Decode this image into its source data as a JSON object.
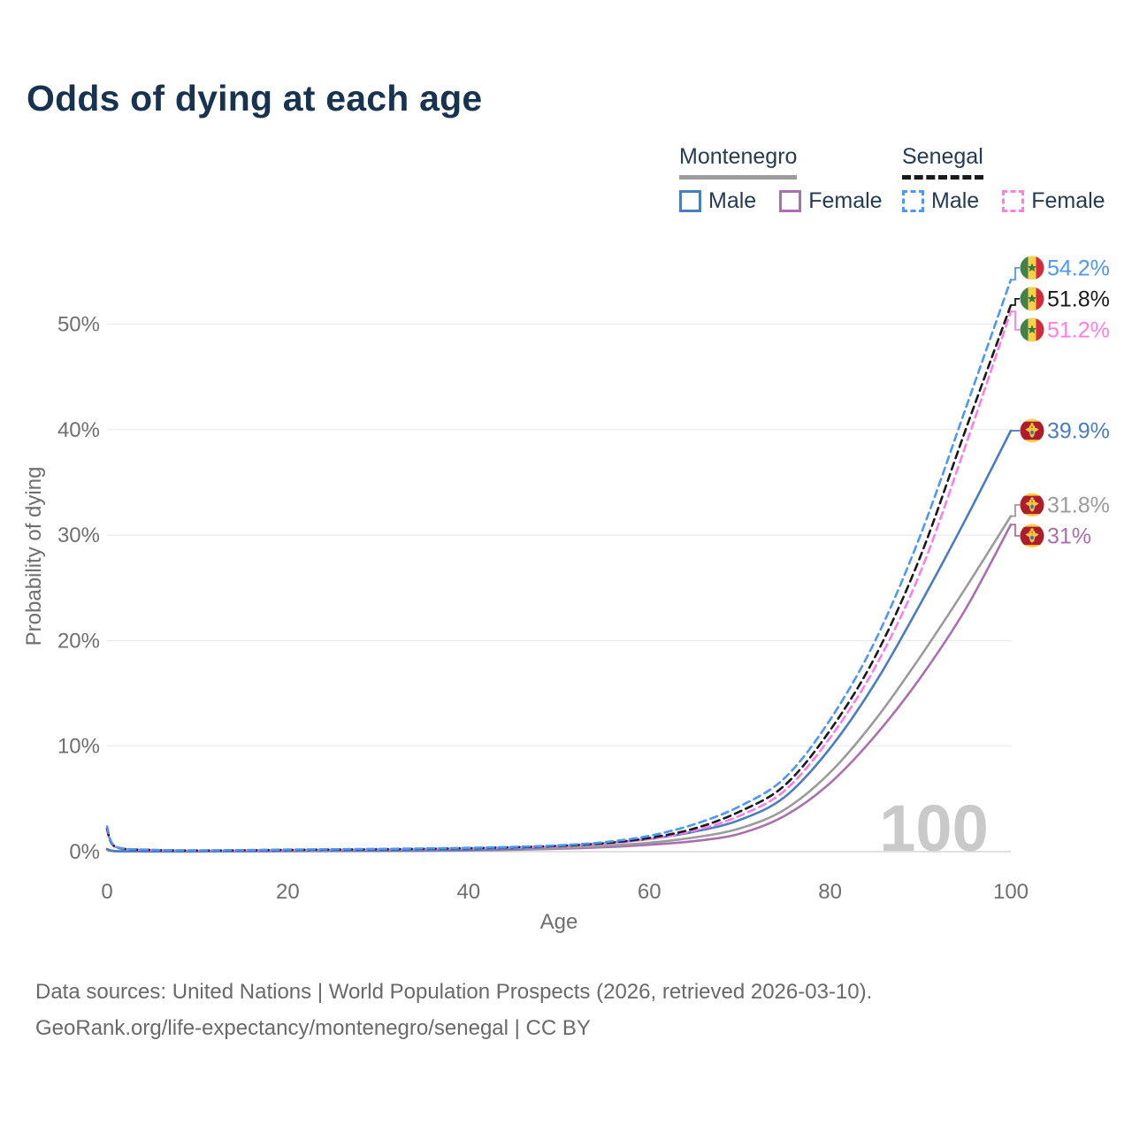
{
  "title": "Odds of dying at each age",
  "legend": {
    "groups": [
      {
        "id": "montenegro",
        "label": "Montenegro",
        "line_style": "solid",
        "underline_color": "#9c9c9c"
      },
      {
        "id": "senegal",
        "label": "Senegal",
        "line_style": "dashed",
        "underline_color": "#1a1a1a"
      }
    ],
    "items": [
      {
        "group": "montenegro",
        "label": "Male",
        "color": "#4a7cc0",
        "dashed": false
      },
      {
        "group": "montenegro",
        "label": "Female",
        "color": "#aa6fae",
        "dashed": false
      },
      {
        "group": "senegal",
        "label": "Male",
        "color": "#4e97f3",
        "dashed": true
      },
      {
        "group": "senegal",
        "label": "Female",
        "color": "#fb7ee6",
        "dashed": true
      }
    ]
  },
  "chart_data": {
    "type": "line",
    "title": "Odds of dying at each age",
    "xlabel": "Age",
    "ylabel": "Probability of dying",
    "x_ticks": [
      0,
      20,
      40,
      60,
      80,
      100
    ],
    "y_ticks": [
      "0%",
      "10%",
      "20%",
      "30%",
      "40%",
      "50%"
    ],
    "xlim": [
      0,
      100
    ],
    "ylim": [
      0,
      57
    ],
    "grid": "horizontal",
    "legend_position": "top-right",
    "watermark": "100",
    "ages": [
      0,
      1,
      5,
      10,
      15,
      20,
      25,
      30,
      35,
      40,
      45,
      50,
      55,
      60,
      65,
      70,
      75,
      80,
      85,
      90,
      95,
      100
    ],
    "unit": "percent",
    "series": [
      {
        "id": "mne_female",
        "name": "Montenegro Female",
        "country": "Montenegro",
        "sex": "Female",
        "color": "#aa6fae",
        "dashed": false,
        "flag": "montenegro",
        "end_label": "31%",
        "end_value": 31.0,
        "values": [
          0.2,
          0.04,
          0.02,
          0.02,
          0.03,
          0.05,
          0.06,
          0.07,
          0.09,
          0.12,
          0.18,
          0.28,
          0.42,
          0.65,
          1.0,
          1.7,
          3.4,
          6.5,
          11.0,
          16.5,
          23.0,
          31.0
        ]
      },
      {
        "id": "mne_both",
        "name": "Montenegro Both sexes",
        "country": "Montenegro",
        "sex": "Both",
        "color": "#9b9b9b",
        "dashed": false,
        "flag": "montenegro",
        "end_label": "31.8%",
        "end_value": 31.8,
        "values": [
          0.22,
          0.04,
          0.02,
          0.02,
          0.04,
          0.06,
          0.07,
          0.08,
          0.1,
          0.14,
          0.22,
          0.35,
          0.55,
          0.85,
          1.35,
          2.2,
          4.0,
          7.5,
          12.5,
          18.5,
          25.0,
          31.8
        ]
      },
      {
        "id": "mne_male",
        "name": "Montenegro Male",
        "country": "Montenegro",
        "sex": "Male",
        "color": "#4a7cc0",
        "dashed": false,
        "flag": "montenegro",
        "end_label": "39.9%",
        "end_value": 39.9,
        "values": [
          0.25,
          0.05,
          0.03,
          0.03,
          0.05,
          0.08,
          0.09,
          0.1,
          0.13,
          0.18,
          0.28,
          0.5,
          0.8,
          1.2,
          1.9,
          3.0,
          5.2,
          9.8,
          16.0,
          23.5,
          31.5,
          39.9
        ]
      },
      {
        "id": "sen_female",
        "name": "Senegal Female",
        "country": "Senegal",
        "sex": "Female",
        "color": "#fb7ee6",
        "dashed": true,
        "flag": "senegal",
        "end_label": "51.2%",
        "end_value": 51.2,
        "values": [
          2.0,
          0.4,
          0.15,
          0.1,
          0.11,
          0.14,
          0.17,
          0.2,
          0.24,
          0.3,
          0.38,
          0.5,
          0.75,
          1.2,
          2.0,
          3.4,
          5.8,
          10.8,
          17.5,
          26.5,
          38.5,
          51.2
        ]
      },
      {
        "id": "sen_both",
        "name": "Senegal Both sexes",
        "country": "Senegal",
        "sex": "Both",
        "color": "#1a1a1a",
        "dashed": true,
        "flag": "senegal",
        "end_label": "51.8%",
        "end_value": 51.8,
        "values": [
          2.2,
          0.42,
          0.16,
          0.11,
          0.13,
          0.17,
          0.2,
          0.23,
          0.27,
          0.33,
          0.42,
          0.55,
          0.8,
          1.3,
          2.2,
          3.8,
          6.3,
          11.5,
          18.5,
          28.0,
          40.0,
          51.8
        ]
      },
      {
        "id": "sen_male",
        "name": "Senegal Male",
        "country": "Senegal",
        "sex": "Male",
        "color": "#4e97f3",
        "dashed": true,
        "flag": "senegal",
        "end_label": "54.2%",
        "end_value": 54.2,
        "values": [
          2.4,
          0.45,
          0.18,
          0.12,
          0.15,
          0.2,
          0.23,
          0.26,
          0.3,
          0.36,
          0.45,
          0.6,
          0.9,
          1.5,
          2.6,
          4.3,
          7.0,
          12.5,
          20.0,
          30.0,
          42.0,
          54.2
        ]
      }
    ],
    "flag_colors": {
      "senegal": {
        "green": "#41804a",
        "yellow": "#f9d04a",
        "red": "#d22b3c",
        "star": "#39783f"
      },
      "montenegro": {
        "border_gold": "#f7d14a",
        "field_red": "#ad1d2c",
        "emblem_gold": "#f2c83d",
        "shield_blue": "#4470b3"
      }
    }
  },
  "footer": {
    "line1": "Data sources: United Nations | World Population Prospects (2026, retrieved 2026-03-10).",
    "line2": "GeoRank.org/life-expectancy/montenegro/senegal | CC BY"
  }
}
